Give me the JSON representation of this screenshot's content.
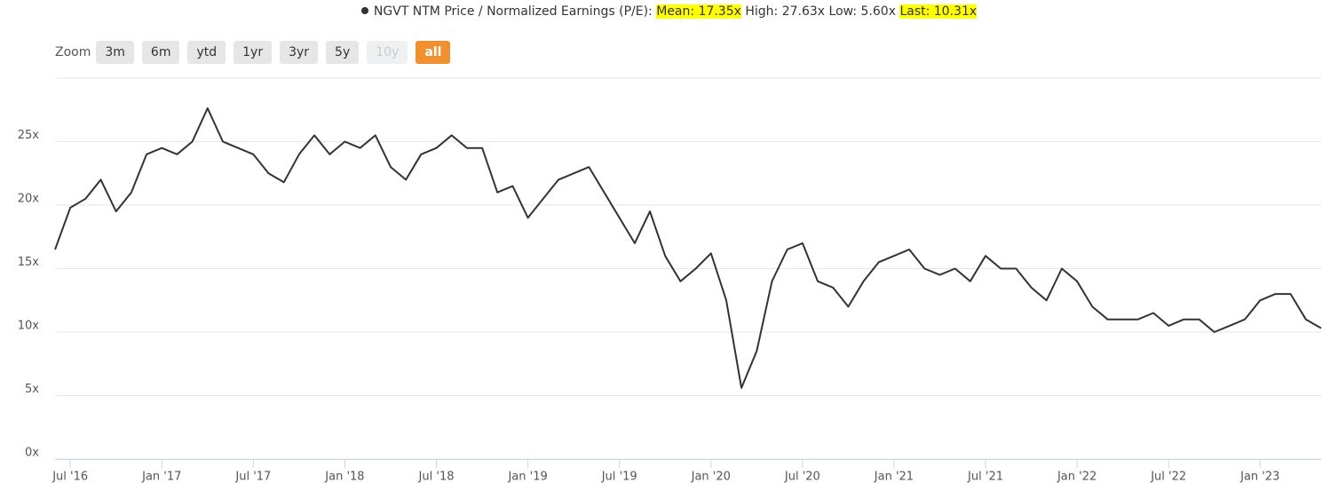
{
  "chart_data": {
    "type": "line",
    "legend": {
      "series_label": "NGVT NTM Price / Normalized Earnings (P/E):",
      "mean": "Mean: 17.35x",
      "high": "High: 27.63x",
      "low": "Low: 5.60x",
      "last": "Last: 10.31x"
    },
    "zoom": {
      "label": "Zoom",
      "buttons": [
        "3m",
        "6m",
        "ytd",
        "1yr",
        "3yr",
        "5y",
        "10y",
        "all"
      ],
      "disabled": "10y",
      "active": "all"
    },
    "x": [
      "2016-06",
      "2016-07",
      "2016-08",
      "2016-09",
      "2016-10",
      "2016-11",
      "2016-12",
      "2017-01",
      "2017-02",
      "2017-03",
      "2017-04",
      "2017-05",
      "2017-06",
      "2017-07",
      "2017-08",
      "2017-09",
      "2017-10",
      "2017-11",
      "2017-12",
      "2018-01",
      "2018-02",
      "2018-03",
      "2018-04",
      "2018-05",
      "2018-06",
      "2018-07",
      "2018-08",
      "2018-09",
      "2018-10",
      "2018-11",
      "2018-12",
      "2019-01",
      "2019-02",
      "2019-03",
      "2019-04",
      "2019-05",
      "2019-06",
      "2019-07",
      "2019-08",
      "2019-09",
      "2019-10",
      "2019-11",
      "2019-12",
      "2020-01",
      "2020-02",
      "2020-03",
      "2020-04",
      "2020-05",
      "2020-06",
      "2020-07",
      "2020-08",
      "2020-09",
      "2020-10",
      "2020-11",
      "2020-12",
      "2021-01",
      "2021-02",
      "2021-03",
      "2021-04",
      "2021-05",
      "2021-06",
      "2021-07",
      "2021-08",
      "2021-09",
      "2021-10",
      "2021-11",
      "2021-12",
      "2022-01",
      "2022-02",
      "2022-03",
      "2022-04",
      "2022-05",
      "2022-06",
      "2022-07",
      "2022-08",
      "2022-09",
      "2022-10",
      "2022-11",
      "2022-12",
      "2023-01",
      "2023-02",
      "2023-03",
      "2023-04",
      "2023-05"
    ],
    "series": [
      {
        "name": "NGVT NTM Price / Normalized Earnings (P/E)",
        "color": "#333333",
        "values": [
          16.5,
          19.8,
          20.5,
          22,
          19.5,
          21,
          24,
          24.5,
          24,
          25,
          27.63,
          25,
          24.5,
          24,
          22.5,
          21.8,
          24,
          25.5,
          24,
          25,
          24.5,
          25.5,
          23,
          22,
          24,
          24.5,
          25.5,
          24.5,
          24.5,
          21,
          21.5,
          19,
          20.5,
          22,
          22.5,
          23,
          21,
          19,
          17,
          19.5,
          16,
          14,
          15,
          16.2,
          12.5,
          5.6,
          8.5,
          14,
          16.5,
          17,
          14,
          13.5,
          12,
          14,
          15.5,
          16,
          16.5,
          15,
          14.5,
          15,
          14,
          16,
          15,
          15,
          13.5,
          12.5,
          15,
          14,
          12,
          11,
          11,
          11,
          11.5,
          10.5,
          11,
          11,
          10,
          10.5,
          11,
          12.5,
          13,
          13,
          11,
          10.31
        ]
      }
    ],
    "xlim": [
      "2016-06",
      "2023-05"
    ],
    "xticks": [
      {
        "value": "2016-07",
        "label": "Jul '16"
      },
      {
        "value": "2017-01",
        "label": "Jan '17"
      },
      {
        "value": "2017-07",
        "label": "Jul '17"
      },
      {
        "value": "2018-01",
        "label": "Jan '18"
      },
      {
        "value": "2018-07",
        "label": "Jul '18"
      },
      {
        "value": "2019-01",
        "label": "Jan '19"
      },
      {
        "value": "2019-07",
        "label": "Jul '19"
      },
      {
        "value": "2020-01",
        "label": "Jan '20"
      },
      {
        "value": "2020-07",
        "label": "Jul '20"
      },
      {
        "value": "2021-01",
        "label": "Jan '21"
      },
      {
        "value": "2021-07",
        "label": "Jul '21"
      },
      {
        "value": "2022-01",
        "label": "Jan '22"
      },
      {
        "value": "2022-07",
        "label": "Jul '22"
      },
      {
        "value": "2023-01",
        "label": "Jan '23"
      }
    ],
    "ylim": [
      0,
      30
    ],
    "yticks": [
      {
        "value": 0,
        "label": "0x"
      },
      {
        "value": 5,
        "label": "5x"
      },
      {
        "value": 10,
        "label": "10x"
      },
      {
        "value": 15,
        "label": "15x"
      },
      {
        "value": 20,
        "label": "20x"
      },
      {
        "value": 25,
        "label": "25x"
      },
      {
        "value": 30,
        "label": ""
      }
    ],
    "grid": true
  }
}
